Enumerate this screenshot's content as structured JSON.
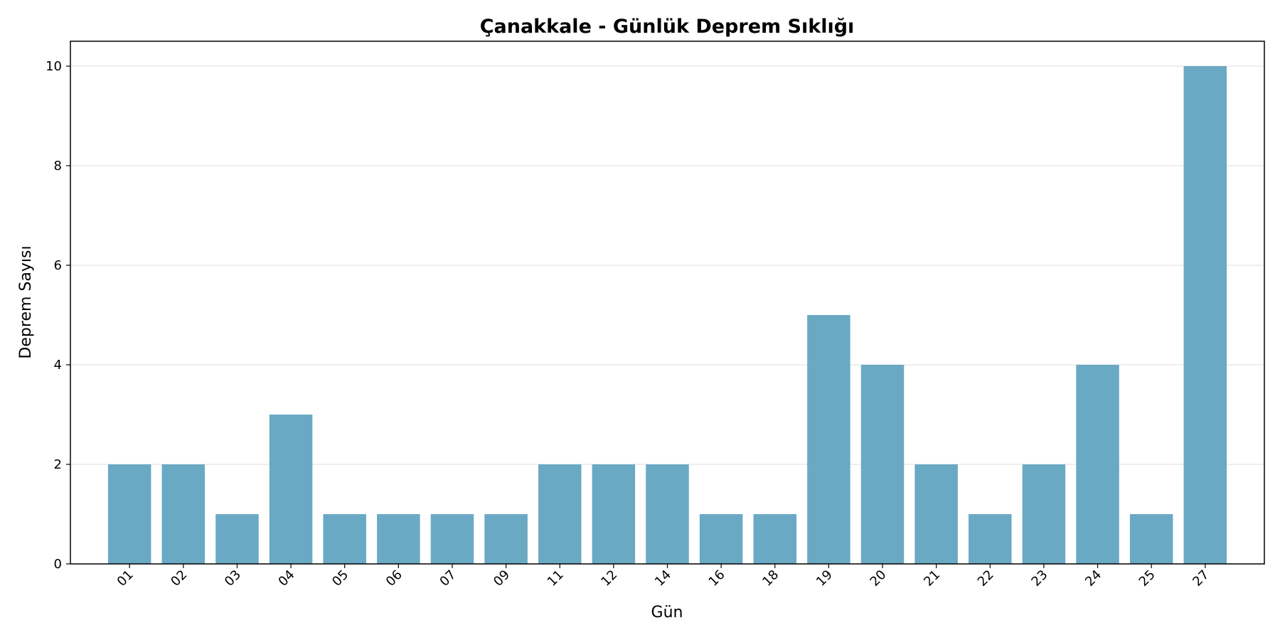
{
  "chart_data": {
    "type": "bar",
    "title": "Çanakkale - Günlük Deprem Sıklığı",
    "xlabel": "Gün",
    "ylabel": "Deprem Sayısı",
    "categories": [
      "01",
      "02",
      "03",
      "04",
      "05",
      "06",
      "07",
      "09",
      "11",
      "12",
      "14",
      "16",
      "18",
      "19",
      "20",
      "21",
      "22",
      "23",
      "24",
      "25",
      "27"
    ],
    "values": [
      2,
      2,
      1,
      3,
      1,
      1,
      1,
      1,
      2,
      2,
      2,
      1,
      1,
      5,
      4,
      2,
      1,
      2,
      4,
      1,
      10
    ],
    "ylim": [
      0,
      10.5
    ],
    "yticks": [
      0,
      2,
      4,
      6,
      8,
      10
    ],
    "grid": "y",
    "bar_color": "#6aa9c4"
  }
}
